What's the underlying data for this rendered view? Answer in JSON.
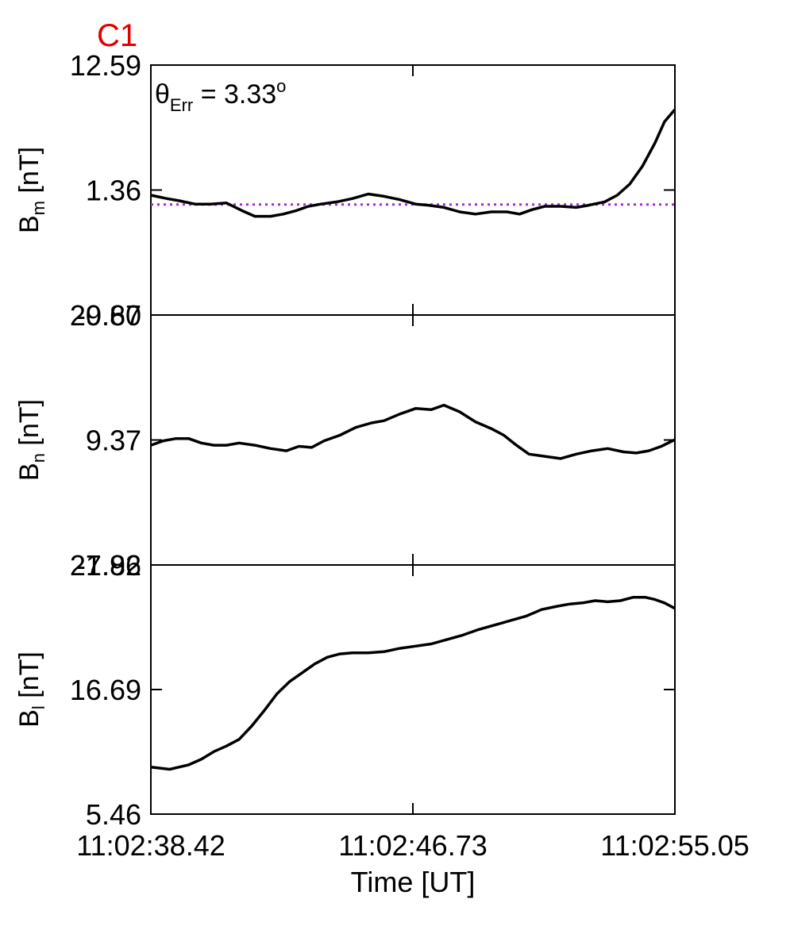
{
  "figure_label": "C1",
  "figure_label_color": "#e00000",
  "annotation": {
    "symbol": "θ",
    "sub": "Err",
    "eq": " =  3.33",
    "sup": "o"
  },
  "xlabel": "Time [UT]",
  "chart_data": [
    {
      "type": "line",
      "panel": "top",
      "ylabel": {
        "main": "B",
        "sub": "m",
        "unit": " [nT]"
      },
      "ylim": [
        -9.87,
        12.59
      ],
      "yticks": [
        "12.59",
        "1.36",
        "-9.87"
      ],
      "xlim": [
        0,
        16.63
      ],
      "xticks": [
        "11:02:38.42",
        "11:02:46.73",
        "11:02:55.05"
      ],
      "reference_line": {
        "value": 0.06,
        "style": "dotted",
        "color": "#9b30d9"
      },
      "series": [
        {
          "color": "#000000",
          "x": [
            0,
            0.5,
            0.9,
            1.4,
            1.9,
            2.4,
            2.9,
            3.3,
            3.8,
            4.2,
            4.6,
            5.0,
            5.4,
            5.9,
            6.4,
            6.9,
            7.4,
            7.9,
            8.4,
            8.8,
            9.3,
            9.8,
            10.3,
            10.8,
            11.3,
            11.7,
            12.1,
            12.5,
            13.0,
            13.5,
            13.9,
            14.4,
            14.8,
            15.2,
            15.6,
            16.0,
            16.3,
            16.63
          ],
          "y": [
            0.9,
            0.6,
            0.4,
            0.1,
            0.1,
            0.2,
            -0.5,
            -1.0,
            -1.0,
            -0.8,
            -0.5,
            -0.1,
            0.1,
            0.3,
            0.6,
            1.0,
            0.8,
            0.5,
            0.1,
            0.0,
            -0.2,
            -0.6,
            -0.8,
            -0.6,
            -0.6,
            -0.8,
            -0.4,
            -0.1,
            -0.1,
            -0.2,
            0.0,
            0.3,
            0.9,
            1.9,
            3.5,
            5.6,
            7.5,
            8.6
          ]
        }
      ]
    },
    {
      "type": "line",
      "panel": "middle",
      "ylabel": {
        "main": "B",
        "sub": "n",
        "unit": " [nT]"
      },
      "ylim": [
        -1.86,
        20.6
      ],
      "yticks": [
        "20.60",
        "9.37",
        "-1.86"
      ],
      "xlim": [
        0,
        16.63
      ],
      "xticks": [
        "11:02:38.42",
        "11:02:46.73",
        "11:02:55.05"
      ],
      "series": [
        {
          "color": "#000000",
          "x": [
            0,
            0.4,
            0.8,
            1.2,
            1.6,
            2.0,
            2.4,
            2.8,
            3.3,
            3.8,
            4.3,
            4.7,
            5.1,
            5.5,
            6.0,
            6.5,
            7.0,
            7.4,
            7.9,
            8.4,
            8.9,
            9.3,
            9.8,
            10.3,
            10.8,
            11.2,
            11.6,
            12.0,
            12.5,
            13.0,
            13.5,
            14.0,
            14.5,
            15.0,
            15.4,
            15.8,
            16.2,
            16.63
          ],
          "y": [
            8.9,
            9.3,
            9.5,
            9.5,
            9.1,
            8.9,
            8.9,
            9.1,
            8.9,
            8.6,
            8.4,
            8.8,
            8.7,
            9.3,
            9.8,
            10.5,
            10.9,
            11.1,
            11.7,
            12.2,
            12.1,
            12.5,
            11.9,
            11.0,
            10.4,
            9.8,
            8.9,
            8.1,
            7.9,
            7.7,
            8.1,
            8.4,
            8.6,
            8.3,
            8.2,
            8.4,
            8.8,
            9.4
          ]
        }
      ]
    },
    {
      "type": "line",
      "panel": "bottom",
      "ylabel": {
        "main": "B",
        "sub": "l",
        "unit": " [nT]"
      },
      "ylim": [
        5.46,
        27.92
      ],
      "yticks": [
        "27.92",
        "16.69",
        "5.46"
      ],
      "xlim": [
        0,
        16.63
      ],
      "xticks": [
        "11:02:38.42",
        "11:02:46.73",
        "11:02:55.05"
      ],
      "series": [
        {
          "color": "#000000",
          "x": [
            0,
            0.3,
            0.6,
            0.9,
            1.2,
            1.6,
            2.0,
            2.4,
            2.8,
            3.2,
            3.6,
            4.0,
            4.4,
            4.8,
            5.2,
            5.6,
            6.0,
            6.4,
            6.9,
            7.4,
            7.9,
            8.4,
            8.9,
            9.4,
            9.9,
            10.4,
            10.9,
            11.4,
            11.9,
            12.4,
            12.9,
            13.3,
            13.7,
            14.1,
            14.5,
            14.9,
            15.3,
            15.7,
            16.0,
            16.3,
            16.63
          ],
          "y": [
            9.7,
            9.6,
            9.5,
            9.7,
            9.9,
            10.4,
            11.1,
            11.6,
            12.2,
            13.4,
            14.8,
            16.3,
            17.4,
            18.2,
            19.0,
            19.6,
            19.9,
            20.0,
            20.0,
            20.1,
            20.4,
            20.6,
            20.8,
            21.2,
            21.6,
            22.1,
            22.5,
            22.9,
            23.3,
            23.9,
            24.2,
            24.4,
            24.5,
            24.7,
            24.6,
            24.7,
            25.0,
            25.0,
            24.8,
            24.5,
            24.0
          ]
        }
      ]
    }
  ]
}
